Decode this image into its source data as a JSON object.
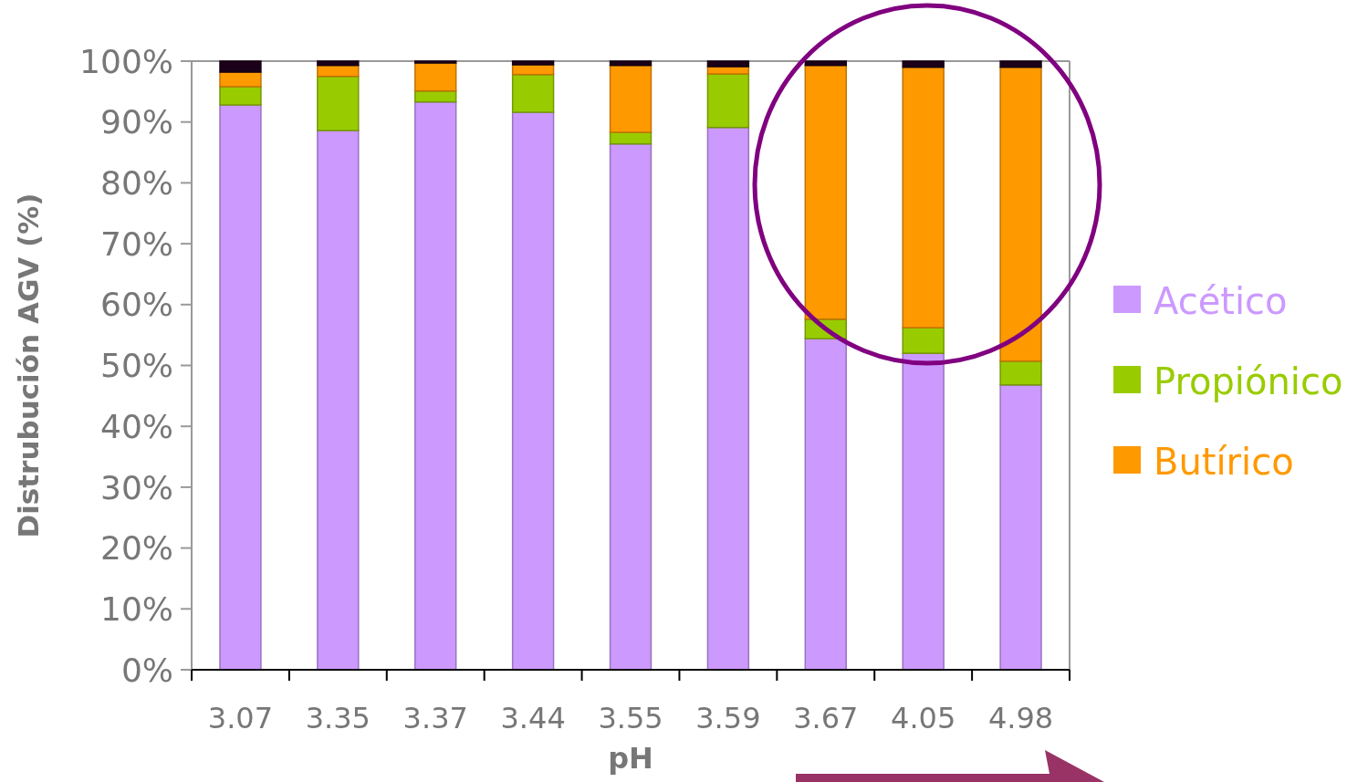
{
  "chart_data": {
    "type": "bar",
    "stacked": true,
    "xlabel": "pH",
    "ylabel": "Distrubución AGV (%)",
    "categories": [
      "3.07",
      "3.35",
      "3.37",
      "3.44",
      "3.55",
      "3.59",
      "3.67",
      "4.05",
      "4.98"
    ],
    "series": [
      {
        "name": "Acético",
        "color": "#cc99ff",
        "values": [
          92.8,
          88.6,
          93.3,
          91.6,
          86.4,
          89.1,
          54.4,
          52.0,
          46.8
        ]
      },
      {
        "name": "Propiónico",
        "color": "#99cc00",
        "values": [
          3.0,
          8.9,
          1.8,
          6.2,
          1.9,
          8.8,
          3.2,
          4.2,
          3.9
        ]
      },
      {
        "name": "Butírico",
        "color": "#ff9900",
        "values": [
          2.4,
          1.8,
          4.6,
          1.6,
          11.0,
          1.2,
          41.7,
          42.8,
          48.3
        ]
      },
      {
        "color": "#1a0018",
        "values": [
          1.8,
          0.7,
          0.3,
          0.6,
          0.7,
          0.9,
          0.7,
          1.0,
          1.0
        ]
      }
    ],
    "ylim": [
      0,
      100
    ],
    "yticks": [
      {
        "value": 0,
        "label": "0%"
      },
      {
        "value": 10,
        "label": "10%"
      },
      {
        "value": 20,
        "label": "20%"
      },
      {
        "value": 30,
        "label": "30%"
      },
      {
        "value": 40,
        "label": "40%"
      },
      {
        "value": 50,
        "label": "50%"
      },
      {
        "value": 60,
        "label": "60%"
      },
      {
        "value": 70,
        "label": "70%"
      },
      {
        "value": 80,
        "label": "80%"
      },
      {
        "value": 90,
        "label": "90%"
      },
      {
        "value": 100,
        "label": "100%"
      }
    ],
    "legend": "right"
  }
}
